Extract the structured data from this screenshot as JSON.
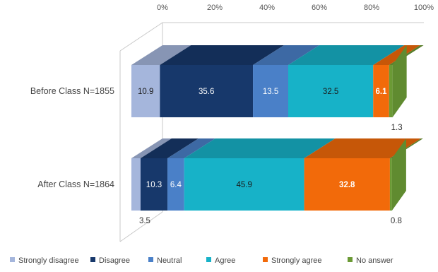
{
  "chart_data": {
    "type": "bar",
    "orientation": "horizontal",
    "stacked": "percent",
    "three_d": true,
    "xlim": [
      0,
      100
    ],
    "x_ticks": [
      "0%",
      "20%",
      "40%",
      "60%",
      "80%",
      "100%"
    ],
    "tick_position": "top",
    "categories": [
      "Before Class N=1855",
      "After Class N=1864"
    ],
    "series": [
      {
        "name": "Strongly disagree",
        "color": "#a5b6dc",
        "values": [
          10.9,
          3.5
        ],
        "labels": [
          "10.9",
          "3.5"
        ]
      },
      {
        "name": "Disagree",
        "color": "#17386b",
        "values": [
          35.6,
          10.3
        ],
        "labels": [
          "35.6",
          "10.3"
        ]
      },
      {
        "name": "Neutral",
        "color": "#4a80c8",
        "values": [
          13.5,
          6.4
        ],
        "labels": [
          "13.5",
          "6.4"
        ]
      },
      {
        "name": "Agree",
        "color": "#17b2c8",
        "values": [
          32.5,
          45.9
        ],
        "labels": [
          "32.5",
          "45.9"
        ]
      },
      {
        "name": "Strongly agree",
        "color": "#f26a0a",
        "values": [
          6.1,
          32.8
        ],
        "labels": [
          "6.1",
          "32.8"
        ]
      },
      {
        "name": "No answer",
        "color": "#6b9a35",
        "values": [
          1.3,
          0.8
        ],
        "labels": [
          "1.3",
          "0.8"
        ]
      }
    ],
    "legend": {
      "position": "bottom"
    },
    "grid": false
  }
}
